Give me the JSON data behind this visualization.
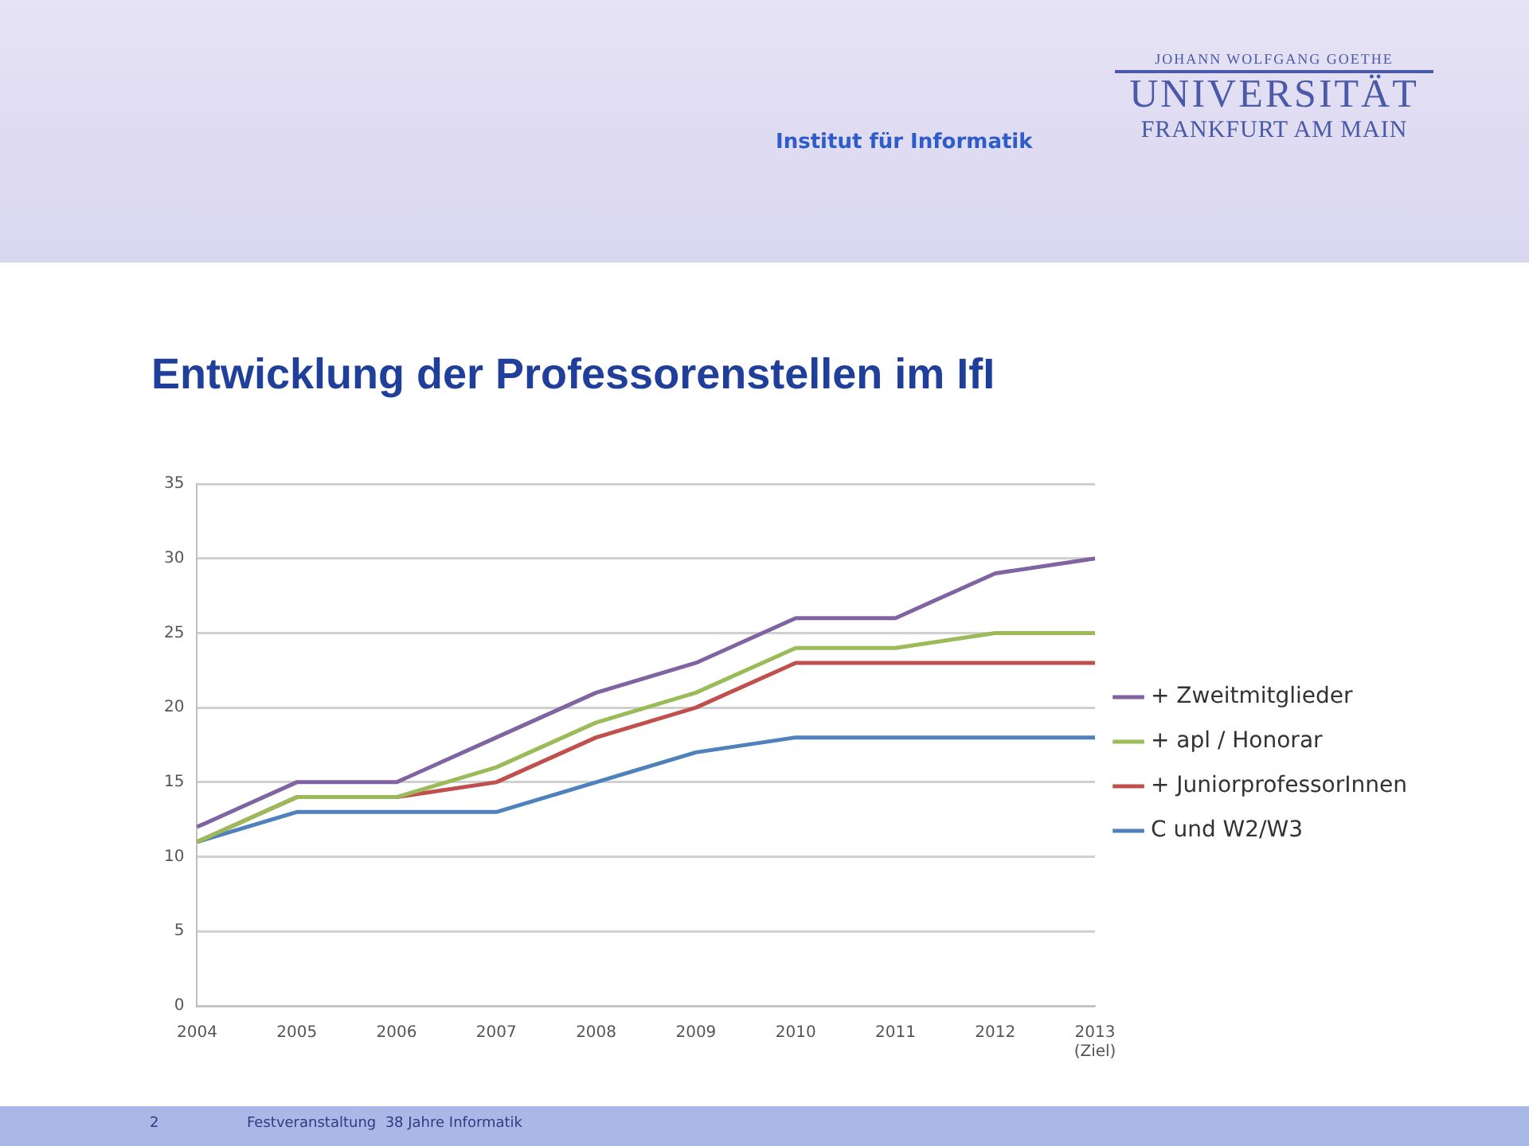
{
  "chart_data": {
    "type": "line",
    "title": "Entwicklung der Professorenstellen im IfI",
    "annotations": [
      "Institut für Informatik",
      "JOHANN WOLFGANG GOETHE",
      "UNIVERSITÄT",
      "FRANKFURT AM MAIN",
      "2",
      "Festveranstaltung  38 Jahre Informatik"
    ],
    "categories": [
      "2004",
      "2005",
      "2006",
      "2007",
      "2008",
      "2009",
      "2010",
      "2011",
      "2012",
      "2013\n(Ziel)"
    ],
    "series": [
      {
        "name": "+ Zweitmitglieder",
        "color": "#8064a2",
        "values": [
          12,
          15,
          15,
          18,
          21,
          23,
          26,
          26,
          29,
          30
        ]
      },
      {
        "name": "+ apl / Honorar",
        "color": "#9bbb59",
        "values": [
          11,
          14,
          14,
          16,
          19,
          21,
          24,
          24,
          25,
          25
        ]
      },
      {
        "name": "+ JuniorprofessorInnen",
        "color": "#c0504d",
        "values": [
          11,
          14,
          14,
          15,
          18,
          20,
          23,
          23,
          23,
          23
        ]
      },
      {
        "name": "C und W2/W3",
        "color": "#4f81bd",
        "values": [
          11,
          13,
          13,
          13,
          15,
          17,
          18,
          18,
          18,
          18
        ]
      }
    ],
    "ylim": [
      0,
      35
    ],
    "yticks": [
      0,
      5,
      10,
      15,
      20,
      25,
      30,
      35
    ],
    "grid": "y",
    "legend": "right",
    "marker": "none",
    "line_style": "solid"
  }
}
